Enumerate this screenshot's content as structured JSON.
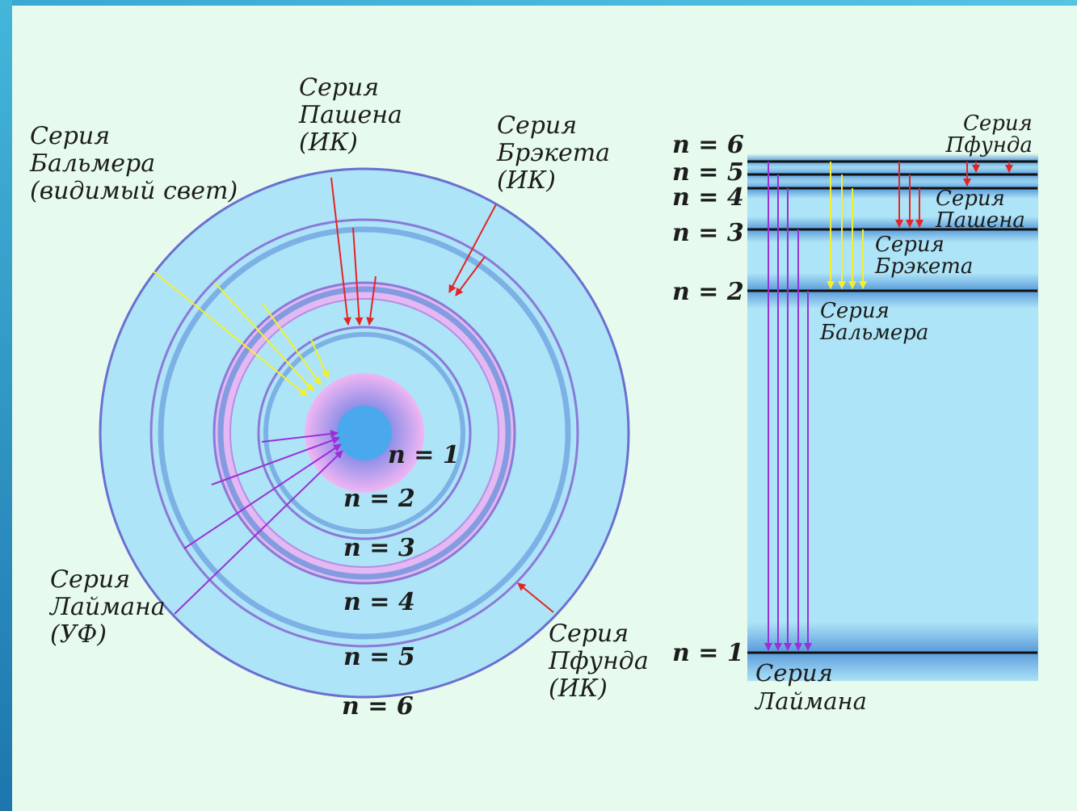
{
  "atom": {
    "orbits": [
      {
        "n": 1,
        "label": "n = 1"
      },
      {
        "n": 2,
        "label": "n = 2"
      },
      {
        "n": 3,
        "label": "n = 3"
      },
      {
        "n": 4,
        "label": "n = 4"
      },
      {
        "n": 5,
        "label": "n = 5"
      },
      {
        "n": 6,
        "label": "n = 6"
      }
    ],
    "series": {
      "balmer": [
        "Серия",
        "Бальмера",
        "(видимый свет)"
      ],
      "paschen": [
        "Серия",
        "Пашена",
        "(ИК)"
      ],
      "brackett": [
        "Серия",
        "Брэкета",
        "(ИК)"
      ],
      "lyman": [
        "Серия",
        "Лаймана",
        "(УФ)"
      ],
      "pfund": [
        "Серия",
        "Пфунда",
        "(ИК)"
      ]
    }
  },
  "levels": {
    "labels": [
      "n = 6",
      "n = 5",
      "n = 4",
      "n = 3",
      "n = 2",
      "n = 1"
    ],
    "series": {
      "pfund": [
        "Серия",
        "Пфунда"
      ],
      "paschen": [
        "Серия",
        "Пашена"
      ],
      "brackett": [
        "Серия",
        "Брэкета"
      ],
      "balmer": [
        "Серия",
        "Бальмера"
      ],
      "lyman": [
        "Серия",
        "Лаймана"
      ]
    }
  },
  "colors": {
    "background": "#e6fbee",
    "orbit_fill": "#aee4f7",
    "lyman": "#9a2fd8",
    "balmer": "#f3f02a",
    "paschen": "#e42424",
    "brackett": "#e42424",
    "pfund": "#e42424"
  }
}
